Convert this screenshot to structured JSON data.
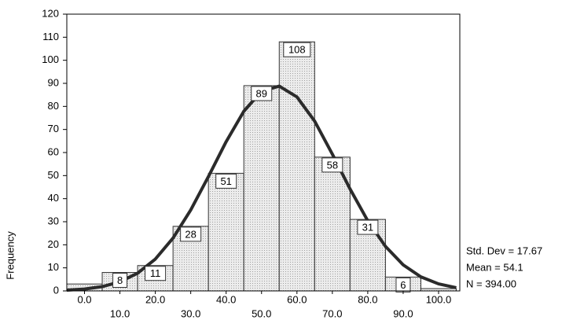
{
  "chart_data": {
    "type": "histogram",
    "y_label": "Frequency",
    "bins": [
      -5,
      5,
      15,
      25,
      35,
      45,
      55,
      65,
      75,
      85,
      95,
      105
    ],
    "values": [
      3,
      8,
      11,
      28,
      51,
      89,
      108,
      58,
      31,
      6,
      1
    ],
    "value_labels": [
      null,
      "8",
      "11",
      "28",
      "51",
      "89",
      "108",
      "58",
      "31",
      "6",
      null
    ],
    "color": "#d9d9d9",
    "curve": {
      "color": "#2b2b2b",
      "x": [
        -5,
        0,
        5,
        10,
        15,
        20,
        25,
        30,
        35,
        40,
        45,
        50,
        55,
        60,
        65,
        70,
        75,
        80,
        85,
        90,
        95,
        100,
        105
      ],
      "values": [
        0.33,
        0.82,
        1.87,
        3.95,
        7.69,
        13.8,
        22.9,
        35.1,
        49.6,
        64.7,
        77.9,
        86.6,
        88.8,
        84.1,
        73.6,
        59.3,
        44.2,
        30.4,
        19.3,
        11.3,
        6.1,
        3.05,
        1.4
      ]
    },
    "xlim": [
      -5,
      106
    ],
    "xticks": [
      {
        "value": 0,
        "label": "0.0"
      },
      {
        "value": 10,
        "label": "10.0"
      },
      {
        "value": 20,
        "label": "20.0"
      },
      {
        "value": 30,
        "label": "30.0"
      },
      {
        "value": 40,
        "label": "40.0"
      },
      {
        "value": 50,
        "label": "50.0"
      },
      {
        "value": 60,
        "label": "60.0"
      },
      {
        "value": 70,
        "label": "70.0"
      },
      {
        "value": 80,
        "label": "80.0"
      },
      {
        "value": 90,
        "label": "90.0"
      },
      {
        "value": 100,
        "label": "100.0"
      }
    ],
    "ylim": [
      0,
      120
    ],
    "yticks": [
      0,
      10,
      20,
      30,
      40,
      50,
      60,
      70,
      80,
      90,
      100,
      110,
      120
    ],
    "stats": [
      "Std. Dev = 17.67",
      "Mean = 54.1",
      "N = 394.00"
    ]
  }
}
